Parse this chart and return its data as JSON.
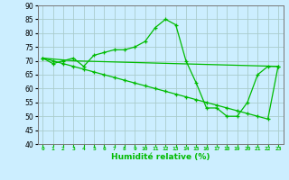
{
  "xlabel": "Humidité relative (%)",
  "background_color": "#cceeff",
  "grid_color": "#aacccc",
  "line_color": "#00bb00",
  "xlim": [
    -0.5,
    23.5
  ],
  "ylim": [
    40,
    90
  ],
  "yticks": [
    40,
    45,
    50,
    55,
    60,
    65,
    70,
    75,
    80,
    85,
    90
  ],
  "xticks": [
    0,
    1,
    2,
    3,
    4,
    5,
    6,
    7,
    8,
    9,
    10,
    11,
    12,
    13,
    14,
    15,
    16,
    17,
    18,
    19,
    20,
    21,
    22,
    23
  ],
  "series1_x": [
    0,
    1,
    2,
    3,
    4,
    5,
    6,
    7,
    8,
    9,
    10,
    11,
    12,
    13,
    14,
    15,
    16,
    17,
    18,
    19,
    20,
    21,
    22,
    23
  ],
  "series1_y": [
    71,
    69,
    70,
    71,
    68,
    72,
    73,
    74,
    74,
    75,
    77,
    82,
    85,
    83,
    70,
    62,
    53,
    53,
    50,
    50,
    55,
    65,
    68,
    68
  ],
  "series2_x": [
    0,
    1,
    2,
    3,
    4,
    5,
    6,
    7,
    8,
    9,
    10,
    11,
    12,
    13,
    14,
    15,
    16,
    17,
    18,
    19,
    20,
    21,
    22,
    23
  ],
  "series2_y": [
    71,
    70,
    69,
    68,
    67,
    66,
    65,
    64,
    63,
    62,
    61,
    60,
    59,
    58,
    57,
    56,
    55,
    54,
    53,
    52,
    51,
    50,
    49,
    68
  ],
  "series3_x": [
    0,
    3,
    23
  ],
  "series3_y": [
    71,
    70,
    68
  ]
}
